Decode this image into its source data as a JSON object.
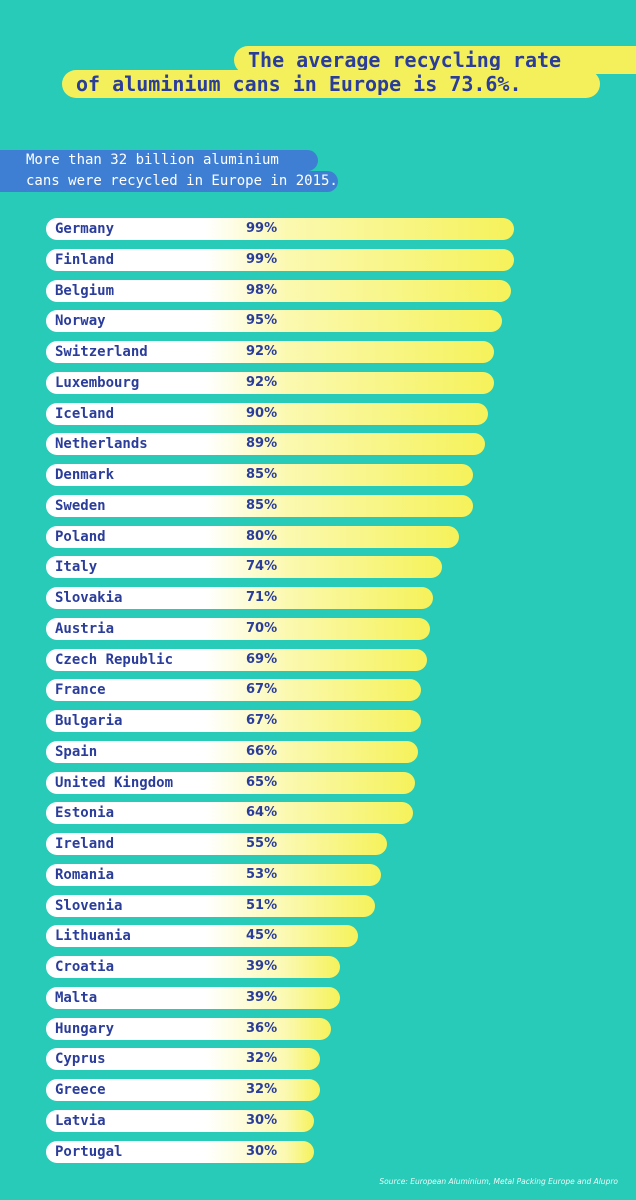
{
  "chart_data": {
    "type": "bar",
    "title_lines": [
      "The average recycling rate",
      "of aluminium cans in Europe is 73.6%."
    ],
    "subtitle_lines": [
      "More than 32 billion aluminium",
      "cans were recycled in Europe in 2015."
    ],
    "categories": [
      "Germany",
      "Finland",
      "Belgium",
      "Norway",
      "Switzerland",
      "Luxembourg",
      "Iceland",
      "Netherlands",
      "Denmark",
      "Sweden",
      "Poland",
      "Italy",
      "Slovakia",
      "Austria",
      "Czech Republic",
      "France",
      "Bulgaria",
      "Spain",
      "United Kingdom",
      "Estonia",
      "Ireland",
      "Romania",
      "Slovenia",
      "Lithuania",
      "Croatia",
      "Malta",
      "Hungary",
      "Cyprus",
      "Greece",
      "Latvia",
      "Portugal"
    ],
    "values": [
      99,
      99,
      98,
      95,
      92,
      92,
      90,
      89,
      85,
      85,
      80,
      74,
      71,
      70,
      69,
      67,
      67,
      66,
      65,
      64,
      55,
      53,
      51,
      45,
      39,
      39,
      36,
      32,
      32,
      30,
      30
    ],
    "value_labels": [
      "99%",
      "99%",
      "98%",
      "95%",
      "92%",
      "92%",
      "90%",
      "89%",
      "85%",
      "85%",
      "80%",
      "74%",
      "71%",
      "70%",
      "69%",
      "67%",
      "67%",
      "66%",
      "65%",
      "64%",
      "55%",
      "53%",
      "51%",
      "45%",
      "39%",
      "39%",
      "36%",
      "32%",
      "32%",
      "30%",
      "30%"
    ],
    "source": "Source:  European Aluminium, Metal Packing Europe and Alupro"
  },
  "colors": {
    "background": "#27cbb8",
    "title_highlight": "#f3f05c",
    "title_text": "#2b3d9b",
    "subtitle_band": "#3f7fd3",
    "bar_start": "#ffffff",
    "bar_end": "#f5f25a"
  }
}
